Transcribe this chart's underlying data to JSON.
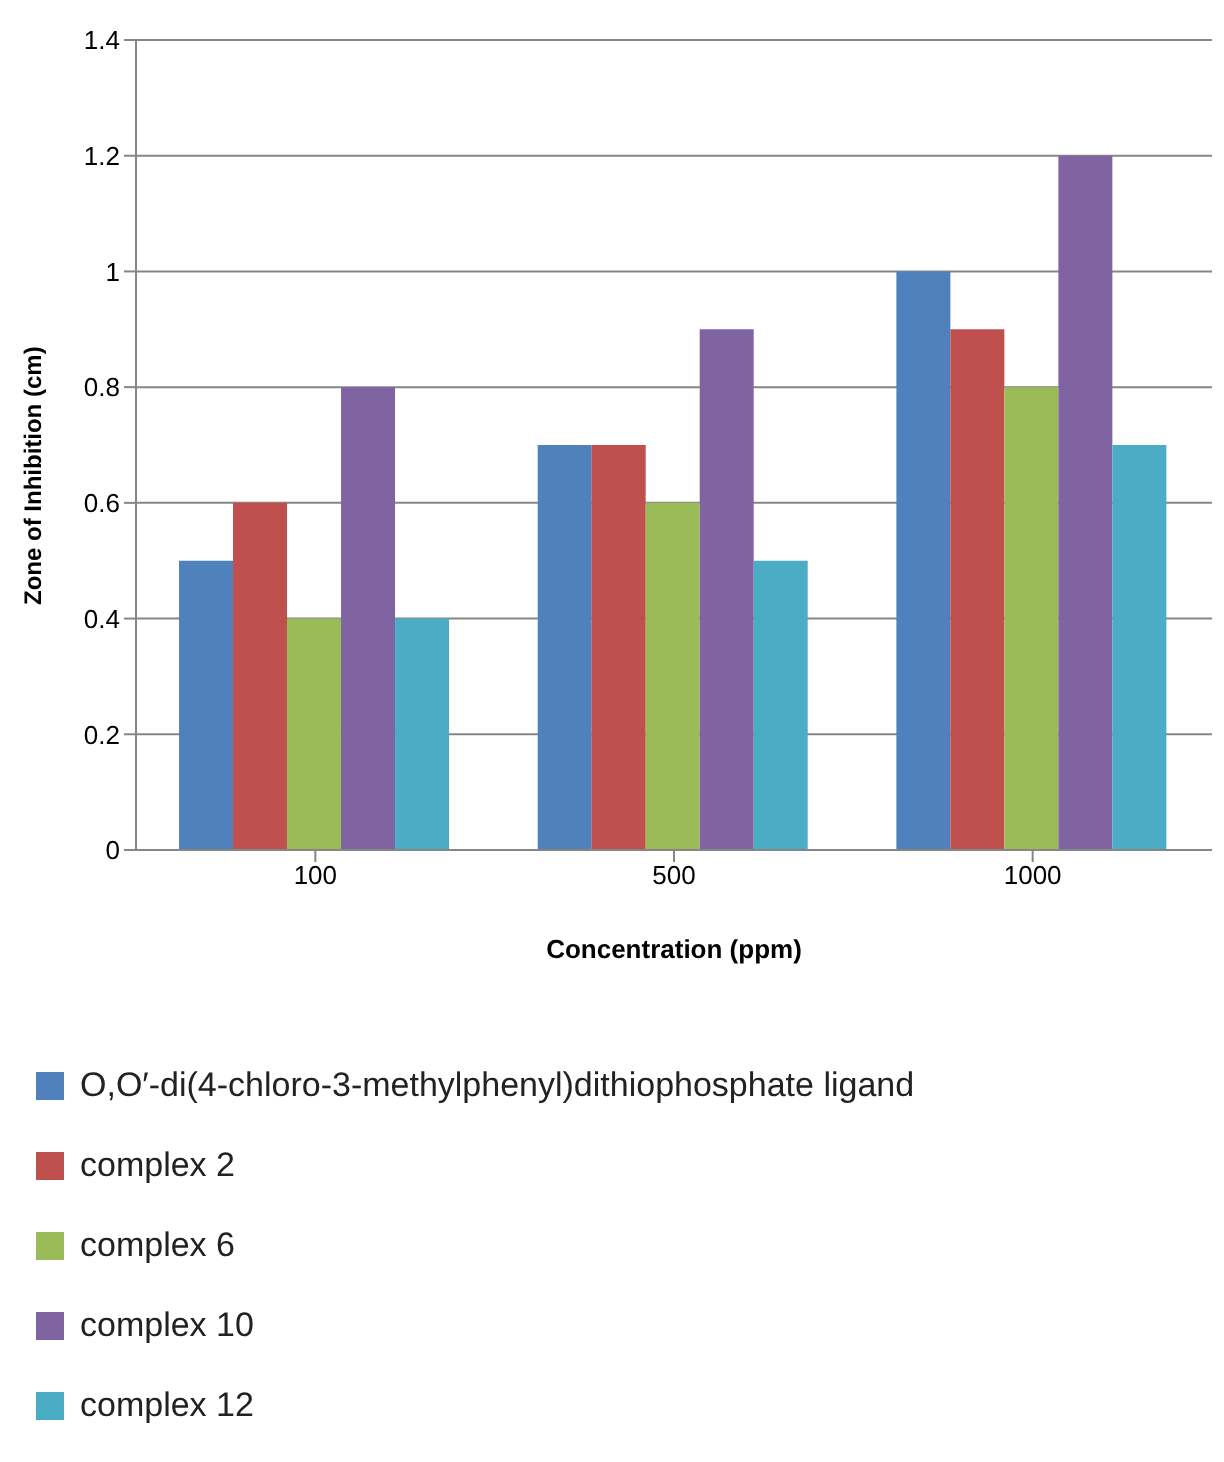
{
  "chart_data": {
    "type": "bar",
    "xlabel": "Concentration (ppm)",
    "ylabel": "Zone of Inhibition (cm)",
    "categories": [
      "100",
      "500",
      "1000"
    ],
    "series": [
      {
        "name": "O,O′-di(4-chloro-3-methylphenyl)dithiophosphate ligand",
        "color": "#4f81bd",
        "values": [
          0.5,
          0.7,
          1.0
        ]
      },
      {
        "name": "complex 2",
        "color": "#c0504d",
        "values": [
          0.6,
          0.7,
          0.9
        ]
      },
      {
        "name": "complex 6",
        "color": "#9bbb59",
        "values": [
          0.4,
          0.6,
          0.8
        ]
      },
      {
        "name": "complex 10",
        "color": "#8064a2",
        "values": [
          0.8,
          0.9,
          1.2
        ]
      },
      {
        "name": "complex 12",
        "color": "#4bacc6",
        "values": [
          0.4,
          0.5,
          0.7
        ]
      }
    ],
    "ylim": [
      0,
      1.4
    ],
    "yticks": [
      0,
      0.2,
      0.4,
      0.6,
      0.8,
      1,
      1.2,
      1.4
    ],
    "grid": "y",
    "legend": "bottom"
  }
}
